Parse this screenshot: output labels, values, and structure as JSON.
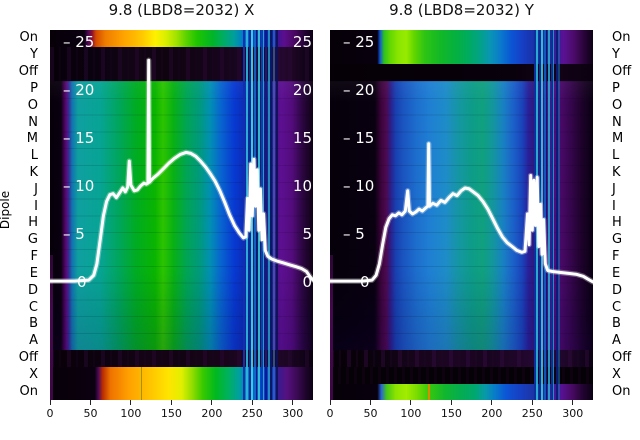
{
  "figure": {
    "background": "#ffffff"
  },
  "axis": {
    "ylabel": "Dipole",
    "y_rows": [
      "On",
      "Y",
      "Off",
      "P",
      "O",
      "N",
      "M",
      "L",
      "K",
      "J",
      "I",
      "H",
      "G",
      "F",
      "E",
      "D",
      "C",
      "B",
      "A",
      "Off",
      "X",
      "On"
    ],
    "x_ticks": [
      0,
      50,
      100,
      150,
      200,
      250,
      300
    ],
    "value_ticks": [
      25,
      20,
      15,
      10,
      5,
      0
    ]
  },
  "chart_data": [
    {
      "type": "heatmap",
      "title": "9.8 (LBD8=2032) X",
      "rows": [
        "On",
        "Y",
        "Off",
        "P",
        "O",
        "N",
        "M",
        "L",
        "K",
        "J",
        "I",
        "H",
        "G",
        "F",
        "E",
        "D",
        "C",
        "B",
        "A",
        "Off",
        "X",
        "On"
      ],
      "x_ticks": [
        0,
        50,
        100,
        150,
        200,
        250,
        300
      ],
      "x_range": [
        0,
        325
      ],
      "bright_rows": [
        "On (top)",
        "P-A central block",
        "X",
        "On (bottom)"
      ],
      "dark_rows": [
        "Y",
        "Off (upper)",
        "Off (lower)"
      ],
      "colormap_hint": [
        "#000000",
        "#5a0a78",
        "#0040d0",
        "#00a392",
        "#00b400",
        "#ffe000",
        "#ff9800"
      ],
      "dropout_x_range": [
        240,
        280
      ],
      "line_axis": {
        "ticks": [
          25,
          20,
          15,
          10,
          5,
          0
        ],
        "range": [
          0,
          25
        ],
        "labels_left": true,
        "labels_right": true
      },
      "line_series": {
        "name": "white overlay trace",
        "points": [
          [
            0,
            0.2
          ],
          [
            30,
            0.2
          ],
          [
            48,
            0.3
          ],
          [
            54,
            0.8
          ],
          [
            58,
            2
          ],
          [
            62,
            4.5
          ],
          [
            66,
            7
          ],
          [
            70,
            8.5
          ],
          [
            74,
            9.2
          ],
          [
            78,
            9.3
          ],
          [
            82,
            8.9
          ],
          [
            86,
            9.4
          ],
          [
            90,
            9.9
          ],
          [
            93,
            9.5
          ],
          [
            96,
            10
          ],
          [
            98,
            12.7
          ],
          [
            100,
            10.2
          ],
          [
            104,
            9.6
          ],
          [
            108,
            9.7
          ],
          [
            112,
            10.1
          ],
          [
            116,
            10.4
          ],
          [
            119,
            10.3
          ],
          [
            121,
            10.4
          ],
          [
            122,
            23.2
          ],
          [
            123,
            10.5
          ],
          [
            127,
            10.9
          ],
          [
            133,
            11.3
          ],
          [
            140,
            11.9
          ],
          [
            147,
            12.5
          ],
          [
            154,
            13
          ],
          [
            161,
            13.4
          ],
          [
            168,
            13.6
          ],
          [
            174,
            13.5
          ],
          [
            180,
            13.2
          ],
          [
            186,
            12.7
          ],
          [
            192,
            12.1
          ],
          [
            198,
            11.4
          ],
          [
            204,
            10.6
          ],
          [
            210,
            9.6
          ],
          [
            216,
            8.4
          ],
          [
            222,
            7.1
          ],
          [
            228,
            6
          ],
          [
            234,
            5.2
          ],
          [
            239,
            4.7
          ],
          [
            242,
            4.8
          ],
          [
            244,
            8.8
          ],
          [
            246,
            5.5
          ],
          [
            248,
            12.4
          ],
          [
            250,
            7
          ],
          [
            252,
            12.9
          ],
          [
            254,
            8
          ],
          [
            256,
            11.8
          ],
          [
            258,
            5.5
          ],
          [
            260,
            9.8
          ],
          [
            262,
            4.5
          ],
          [
            264,
            7.2
          ],
          [
            266,
            3.4
          ],
          [
            269,
            2.8
          ],
          [
            274,
            2.5
          ],
          [
            280,
            2.3
          ],
          [
            288,
            2.1
          ],
          [
            296,
            1.9
          ],
          [
            304,
            1.7
          ],
          [
            311,
            1.5
          ],
          [
            317,
            1.2
          ],
          [
            321,
            0.7
          ],
          [
            325,
            0.3
          ]
        ]
      }
    },
    {
      "type": "heatmap",
      "title": "9.8 (LBD8=2032) Y",
      "rows": [
        "On",
        "Y",
        "Off",
        "P",
        "O",
        "N",
        "M",
        "L",
        "K",
        "J",
        "I",
        "H",
        "G",
        "F",
        "E",
        "D",
        "C",
        "B",
        "A",
        "Off",
        "X",
        "On"
      ],
      "x_ticks": [
        0,
        50,
        100,
        150,
        200,
        250,
        300
      ],
      "x_range": [
        0,
        325
      ],
      "bright_rows": [
        "On (top)",
        "Y",
        "P-A central block",
        "On (bottom)"
      ],
      "dark_rows": [
        "Off (upper)",
        "Off (lower)",
        "X"
      ],
      "colormap_hint": [
        "#000000",
        "#4c0a50",
        "#1d6ecd",
        "#0d9c88",
        "#2ec414",
        "#8ae600"
      ],
      "dropout_x_range": [
        240,
        280
      ],
      "line_axis": {
        "ticks": [
          25,
          20,
          15,
          10,
          5,
          0
        ],
        "range": [
          0,
          25
        ],
        "labels_left": true,
        "labels_right": false
      },
      "line_series": {
        "name": "white overlay trace",
        "points": [
          [
            0,
            0.2
          ],
          [
            40,
            0.2
          ],
          [
            52,
            0.3
          ],
          [
            57,
            0.8
          ],
          [
            61,
            2
          ],
          [
            65,
            4
          ],
          [
            69,
            5.8
          ],
          [
            73,
            6.7
          ],
          [
            77,
            7.1
          ],
          [
            81,
            7
          ],
          [
            85,
            7.3
          ],
          [
            89,
            7.1
          ],
          [
            93,
            7.5
          ],
          [
            96,
            9.6
          ],
          [
            98,
            7.5
          ],
          [
            102,
            7.2
          ],
          [
            106,
            7.4
          ],
          [
            110,
            7.7
          ],
          [
            114,
            7.5
          ],
          [
            118,
            7.8
          ],
          [
            121,
            8
          ],
          [
            122,
            14.5
          ],
          [
            123,
            8
          ],
          [
            127,
            8.3
          ],
          [
            132,
            8.1
          ],
          [
            137,
            8.6
          ],
          [
            142,
            8.4
          ],
          [
            147,
            8.9
          ],
          [
            152,
            9.3
          ],
          [
            157,
            9.1
          ],
          [
            162,
            9.6
          ],
          [
            167,
            9.9
          ],
          [
            172,
            9.8
          ],
          [
            177,
            9.5
          ],
          [
            183,
            9.1
          ],
          [
            189,
            8.5
          ],
          [
            195,
            7.7
          ],
          [
            201,
            6.7
          ],
          [
            207,
            5.7
          ],
          [
            213,
            4.8
          ],
          [
            219,
            4.2
          ],
          [
            225,
            3.8
          ],
          [
            231,
            3.4
          ],
          [
            237,
            3.2
          ],
          [
            241,
            3.3
          ],
          [
            244,
            7.2
          ],
          [
            246,
            4
          ],
          [
            248,
            11.2
          ],
          [
            250,
            5.5
          ],
          [
            252,
            10.7
          ],
          [
            254,
            6
          ],
          [
            256,
            11
          ],
          [
            258,
            3.8
          ],
          [
            260,
            8.2
          ],
          [
            262,
            3
          ],
          [
            264,
            6.6
          ],
          [
            266,
            2
          ],
          [
            269,
            1.3
          ],
          [
            275,
            1.2
          ],
          [
            284,
            1.1
          ],
          [
            295,
            1
          ],
          [
            305,
            0.9
          ],
          [
            313,
            0.7
          ],
          [
            319,
            0.4
          ],
          [
            325,
            0.1
          ]
        ]
      }
    }
  ]
}
